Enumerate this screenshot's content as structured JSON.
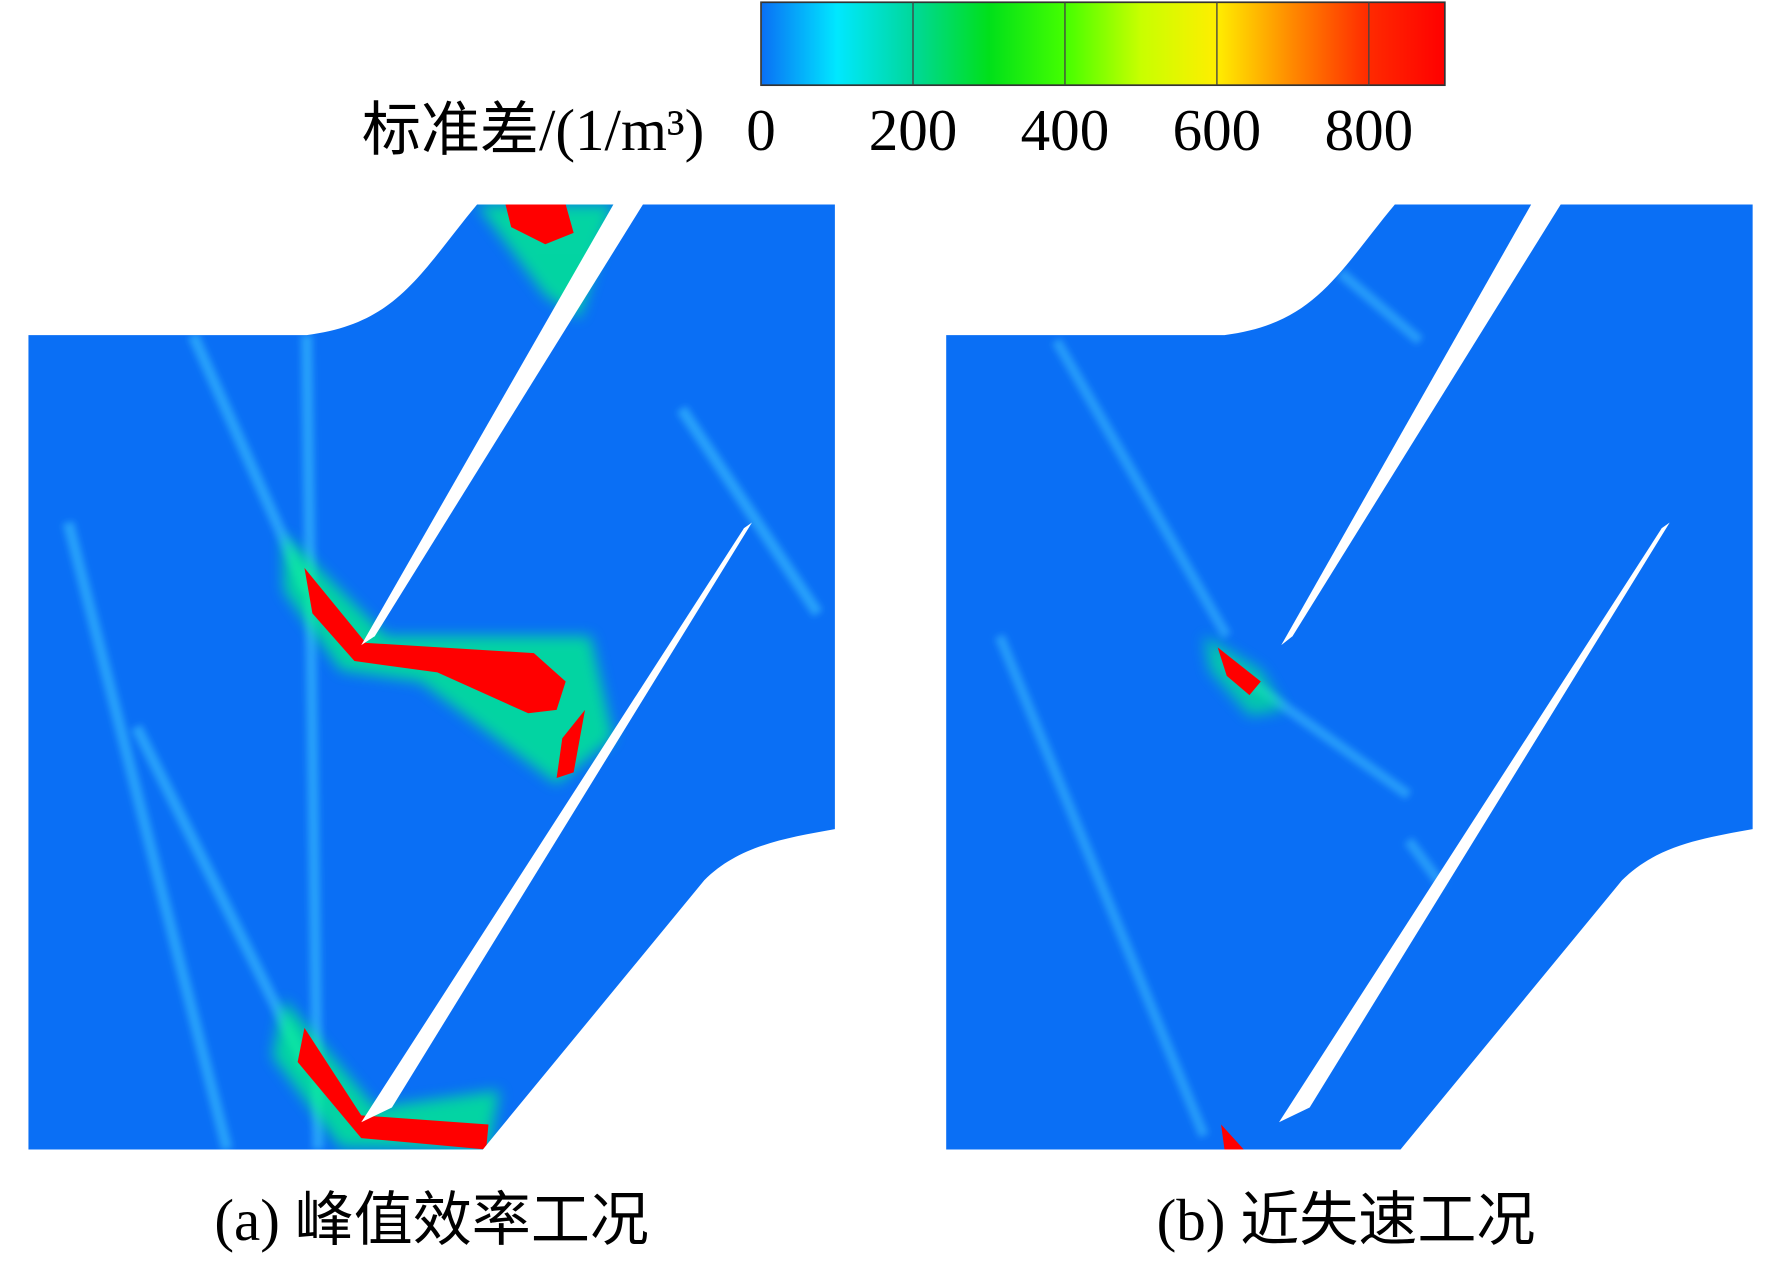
{
  "chart_data": {
    "type": "contour",
    "colorbar": {
      "label": "标准差/(1/m³)",
      "lim": [
        0,
        900
      ],
      "ticks": [
        0,
        200,
        400,
        600,
        800
      ],
      "colors": [
        "#0a6ff5",
        "#00e8ff",
        "#00d89a",
        "#00e01a",
        "#44ff00",
        "#c8ff00",
        "#ffee00",
        "#ff8800",
        "#ff2a00",
        "#ff0000"
      ]
    },
    "panels": [
      {
        "caption": "(a) 峰值效率工况"
      },
      {
        "caption": "(b) 近失速工况"
      }
    ]
  }
}
